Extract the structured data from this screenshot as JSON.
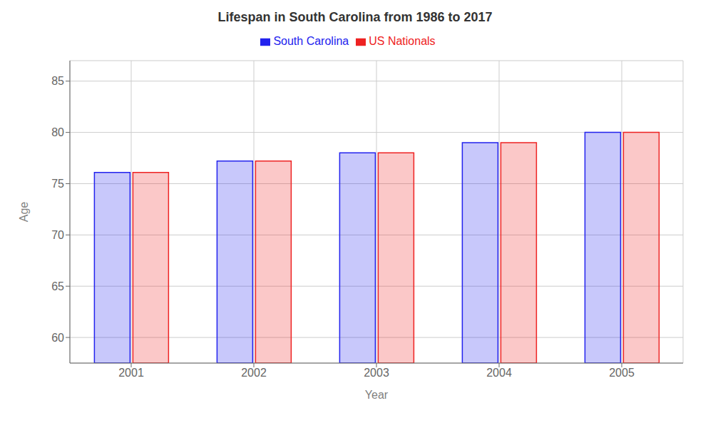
{
  "chart_data": {
    "type": "bar",
    "title": "Lifespan in South Carolina from 1986 to 2017",
    "xlabel": "Year",
    "ylabel": "Age",
    "categories": [
      "2001",
      "2002",
      "2003",
      "2004",
      "2005"
    ],
    "series": [
      {
        "name": "South Carolina",
        "color": "#2222ee",
        "values": [
          76.1,
          77.2,
          78.0,
          79.0,
          80.0
        ]
      },
      {
        "name": "US Nationals",
        "color": "#ee2222",
        "values": [
          76.1,
          77.2,
          78.0,
          79.0,
          80.0
        ]
      }
    ],
    "ylim": [
      57.5,
      87
    ],
    "yticks": [
      60,
      65,
      70,
      75,
      80,
      85
    ],
    "grid": true,
    "legend": "top"
  }
}
